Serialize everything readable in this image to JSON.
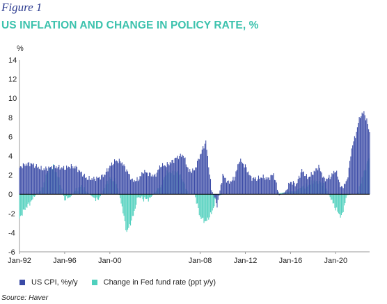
{
  "figure_label": "Figure 1",
  "title": "US INFLATION AND CHANGE IN POLICY RATE, %",
  "source": "Source: Haver",
  "colors": {
    "cpi": "#3a4aa6",
    "fed": "#4fd0bd",
    "zero_line": "#000000",
    "axis": "#999999"
  },
  "chart_data": {
    "type": "bar",
    "title": "US INFLATION AND CHANGE IN POLICY RATE, %",
    "ylabel": "%",
    "xlabel": "",
    "ylim": [
      -6,
      14
    ],
    "yticks": [
      -6,
      -4,
      -2,
      0,
      2,
      4,
      6,
      8,
      10,
      12,
      14
    ],
    "xlim": [
      1992.0,
      2023.0
    ],
    "xtick_labels": [
      "Jan-92",
      "Jan-96",
      "Jan-00",
      "Jan-08",
      "Jan-12",
      "Jan-16",
      "Jan-20"
    ],
    "grid": false,
    "legend_position": "bottom",
    "series": [
      {
        "name": "US CPI, %y/y",
        "description": "monthly values",
        "x": [
          1992.0,
          1992.5,
          1993.0,
          1993.5,
          1994.0,
          1994.5,
          1995.0,
          1995.5,
          1996.0,
          1996.5,
          1997.0,
          1997.5,
          1998.0,
          1998.5,
          1999.0,
          1999.5,
          2000.0,
          2000.5,
          2001.0,
          2001.5,
          2002.0,
          2002.5,
          2003.0,
          2003.5,
          2004.0,
          2004.5,
          2005.0,
          2005.5,
          2006.0,
          2006.5,
          2007.0,
          2007.5,
          2008.0,
          2008.5,
          2009.0,
          2009.5,
          2010.0,
          2010.5,
          2011.0,
          2011.5,
          2012.0,
          2012.5,
          2013.0,
          2013.5,
          2014.0,
          2014.5,
          2015.0,
          2015.5,
          2016.0,
          2016.5,
          2017.0,
          2017.5,
          2018.0,
          2018.5,
          2019.0,
          2019.5,
          2020.0,
          2020.5,
          2021.0,
          2021.5,
          2021.75,
          2022.0,
          2022.25,
          2022.5,
          2022.75,
          2023.0
        ],
        "values": [
          2.8,
          3.1,
          3.2,
          2.9,
          2.6,
          2.7,
          2.9,
          2.8,
          2.7,
          2.9,
          2.8,
          2.2,
          1.6,
          1.6,
          1.7,
          2.0,
          2.9,
          3.5,
          3.4,
          2.5,
          1.4,
          1.5,
          2.4,
          2.1,
          1.9,
          3.0,
          3.0,
          3.4,
          3.9,
          4.1,
          2.4,
          2.5,
          4.1,
          5.5,
          0.5,
          -1.2,
          2.0,
          1.2,
          1.6,
          3.6,
          2.9,
          1.7,
          1.6,
          1.8,
          1.6,
          2.1,
          -0.1,
          0.2,
          1.3,
          1.0,
          2.5,
          1.7,
          2.2,
          2.9,
          1.5,
          1.8,
          2.5,
          0.6,
          1.4,
          5.3,
          6.0,
          7.5,
          8.3,
          8.5,
          7.7,
          6.4
        ]
      },
      {
        "name": "Change in Fed fund rate (ppt y/y)",
        "description": "monthly values",
        "x": [
          1992.0,
          1992.5,
          1993.0,
          1993.5,
          1994.0,
          1994.5,
          1995.0,
          1995.5,
          1996.0,
          1996.5,
          1997.0,
          1997.5,
          1998.0,
          1998.5,
          1999.0,
          1999.5,
          2000.0,
          2000.5,
          2001.0,
          2001.5,
          2002.0,
          2002.5,
          2003.0,
          2003.5,
          2004.0,
          2004.5,
          2005.0,
          2005.5,
          2006.0,
          2006.5,
          2007.0,
          2007.5,
          2008.0,
          2008.5,
          2009.0,
          2009.5,
          2010.0,
          2010.5,
          2011.0,
          2011.5,
          2012.0,
          2012.5,
          2013.0,
          2013.5,
          2014.0,
          2014.5,
          2015.0,
          2015.5,
          2016.0,
          2016.5,
          2017.0,
          2017.5,
          2018.0,
          2018.5,
          2019.0,
          2019.5,
          2020.0,
          2020.5,
          2021.0,
          2021.5,
          2021.75,
          2022.0,
          2022.25,
          2022.5,
          2022.75,
          2023.0
        ],
        "values": [
          -2.5,
          -1.5,
          -0.8,
          0.0,
          0.5,
          2.5,
          3.0,
          1.5,
          -0.5,
          -0.3,
          0.5,
          0.8,
          0.2,
          -0.3,
          -0.6,
          0.6,
          1.7,
          1.4,
          -0.8,
          -4.0,
          -2.5,
          -0.3,
          -0.5,
          -0.5,
          0.2,
          0.9,
          2.2,
          2.3,
          2.3,
          1.4,
          0.0,
          0.1,
          -2.4,
          -2.9,
          -2.0,
          -0.2,
          0.0,
          0.0,
          0.0,
          0.0,
          0.0,
          0.0,
          0.0,
          0.0,
          0.0,
          0.0,
          0.1,
          0.2,
          0.3,
          0.3,
          0.7,
          0.9,
          1.3,
          1.4,
          1.0,
          -0.3,
          -1.5,
          -2.4,
          -0.1,
          0.0,
          0.0,
          0.2,
          1.3,
          2.3,
          3.0,
          4.2
        ]
      }
    ]
  }
}
